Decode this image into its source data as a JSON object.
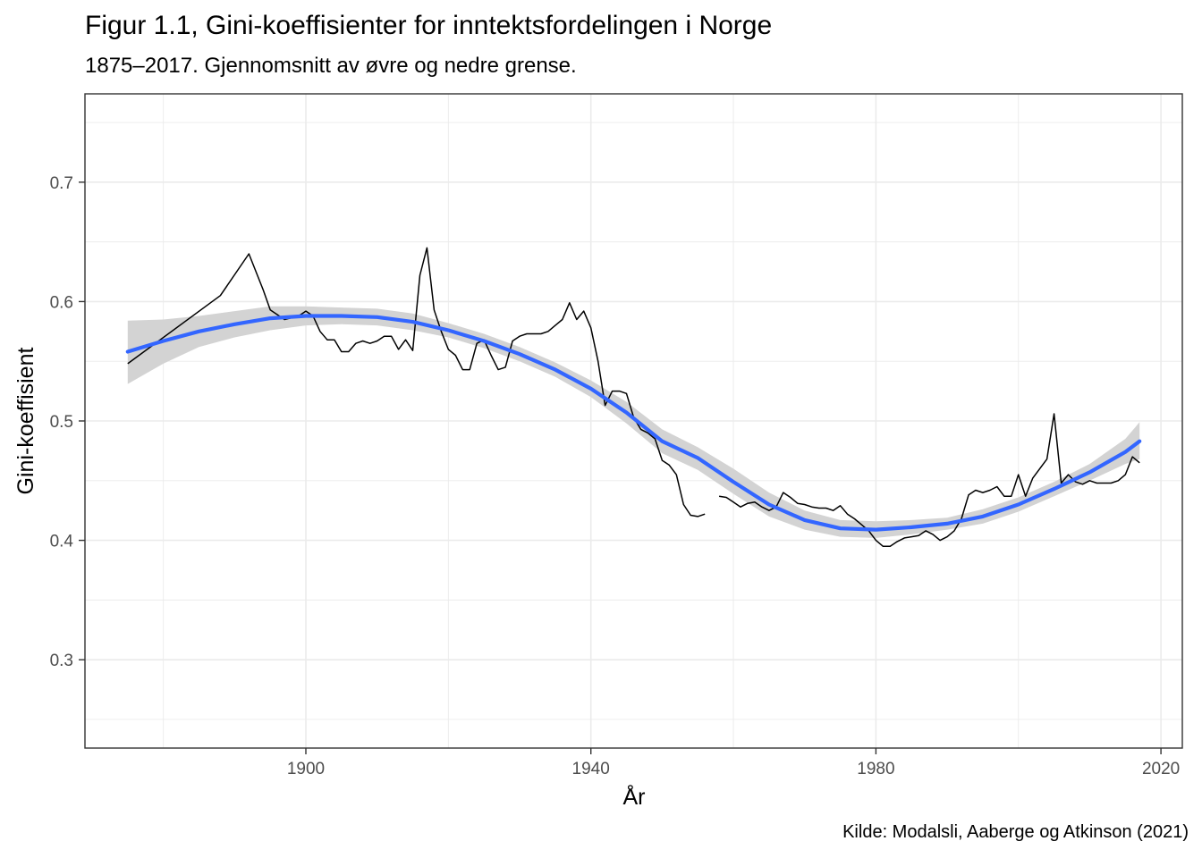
{
  "chart_data": {
    "type": "line",
    "title": "Figur 1.1, Gini-koeffisienter for inntektsfordelingen i Norge",
    "subtitle": "1875–2017. Gjennomsnitt av øvre og nedre grense.",
    "xlabel": "År",
    "ylabel": "Gini-koeffisient",
    "caption": "Kilde: Modalsli, Aaberge og Atkinson (2021)",
    "xlim": [
      1869,
      2023
    ],
    "ylim": [
      0.226,
      0.774
    ],
    "x_ticks": [
      1900,
      1940,
      1980,
      2020
    ],
    "x_tick_labels": [
      "1900",
      "1940",
      "1980",
      "2020"
    ],
    "y_ticks": [
      0.3,
      0.4,
      0.5,
      0.6,
      0.7
    ],
    "y_tick_labels": [
      "0.3",
      "0.4",
      "0.5",
      "0.6",
      "0.7"
    ],
    "grid": true,
    "legend": "none",
    "colors": {
      "observed": "#000000",
      "smooth": "#3366FF",
      "band": "#D3D3D3",
      "grid": "#EBEBEB"
    },
    "series": [
      {
        "kind": "observed",
        "segments": [
          [
            [
              1875,
              0.548
            ],
            [
              1888,
              0.605
            ],
            [
              1892,
              0.64
            ],
            [
              1894,
              0.61
            ],
            [
              1895,
              0.593
            ],
            [
              1897,
              0.585
            ],
            [
              1899,
              0.588
            ],
            [
              1900,
              0.592
            ],
            [
              1901,
              0.588
            ],
            [
              1902,
              0.575
            ],
            [
              1903,
              0.568
            ],
            [
              1904,
              0.568
            ],
            [
              1905,
              0.558
            ],
            [
              1906,
              0.558
            ],
            [
              1907,
              0.565
            ],
            [
              1908,
              0.567
            ],
            [
              1909,
              0.565
            ],
            [
              1910,
              0.567
            ],
            [
              1911,
              0.571
            ],
            [
              1912,
              0.571
            ],
            [
              1913,
              0.56
            ],
            [
              1914,
              0.568
            ],
            [
              1915,
              0.559
            ],
            [
              1916,
              0.622
            ],
            [
              1917,
              0.645
            ],
            [
              1918,
              0.593
            ],
            [
              1919,
              0.575
            ],
            [
              1920,
              0.56
            ],
            [
              1921,
              0.555
            ],
            [
              1922,
              0.543
            ],
            [
              1923,
              0.543
            ],
            [
              1924,
              0.565
            ],
            [
              1925,
              0.568
            ],
            [
              1926,
              0.555
            ],
            [
              1927,
              0.543
            ],
            [
              1928,
              0.545
            ],
            [
              1929,
              0.567
            ],
            [
              1930,
              0.571
            ],
            [
              1931,
              0.573
            ],
            [
              1932,
              0.573
            ],
            [
              1933,
              0.573
            ],
            [
              1934,
              0.575
            ],
            [
              1935,
              0.58
            ],
            [
              1936,
              0.585
            ],
            [
              1937,
              0.599
            ],
            [
              1938,
              0.585
            ],
            [
              1939,
              0.592
            ],
            [
              1940,
              0.578
            ],
            [
              1941,
              0.55
            ],
            [
              1942,
              0.513
            ],
            [
              1943,
              0.525
            ],
            [
              1944,
              0.525
            ],
            [
              1945,
              0.523
            ],
            [
              1946,
              0.503
            ],
            [
              1947,
              0.493
            ],
            [
              1948,
              0.49
            ],
            [
              1949,
              0.485
            ],
            [
              1950,
              0.467
            ],
            [
              1951,
              0.463
            ],
            [
              1952,
              0.455
            ],
            [
              1953,
              0.43
            ],
            [
              1954,
              0.421
            ],
            [
              1955,
              0.42
            ],
            [
              1956,
              0.422
            ]
          ],
          [
            [
              1958,
              0.437
            ],
            [
              1959,
              0.436
            ],
            [
              1960,
              0.432
            ],
            [
              1961,
              0.428
            ],
            [
              1962,
              0.431
            ],
            [
              1963,
              0.432
            ],
            [
              1964,
              0.428
            ],
            [
              1965,
              0.425
            ],
            [
              1966,
              0.428
            ],
            [
              1967,
              0.44
            ],
            [
              1968,
              0.436
            ],
            [
              1969,
              0.431
            ],
            [
              1970,
              0.43
            ],
            [
              1971,
              0.428
            ],
            [
              1972,
              0.427
            ],
            [
              1973,
              0.427
            ],
            [
              1974,
              0.425
            ],
            [
              1975,
              0.429
            ],
            [
              1976,
              0.422
            ],
            [
              1977,
              0.418
            ],
            [
              1978,
              0.413
            ],
            [
              1979,
              0.408
            ],
            [
              1980,
              0.4
            ],
            [
              1981,
              0.395
            ],
            [
              1982,
              0.395
            ],
            [
              1983,
              0.399
            ],
            [
              1984,
              0.402
            ],
            [
              1985,
              0.403
            ],
            [
              1986,
              0.404
            ],
            [
              1987,
              0.408
            ],
            [
              1988,
              0.405
            ],
            [
              1989,
              0.4
            ],
            [
              1990,
              0.403
            ],
            [
              1991,
              0.408
            ],
            [
              1992,
              0.418
            ],
            [
              1993,
              0.438
            ],
            [
              1994,
              0.442
            ],
            [
              1995,
              0.44
            ],
            [
              1996,
              0.442
            ],
            [
              1997,
              0.445
            ],
            [
              1998,
              0.437
            ],
            [
              1999,
              0.437
            ],
            [
              2000,
              0.455
            ],
            [
              2001,
              0.437
            ],
            [
              2002,
              0.452
            ],
            [
              2003,
              0.46
            ],
            [
              2004,
              0.468
            ],
            [
              2005,
              0.506
            ],
            [
              2006,
              0.448
            ],
            [
              2007,
              0.455
            ],
            [
              2008,
              0.449
            ],
            [
              2009,
              0.447
            ],
            [
              2010,
              0.45
            ],
            [
              2011,
              0.448
            ],
            [
              2012,
              0.448
            ],
            [
              2013,
              0.448
            ],
            [
              2014,
              0.45
            ],
            [
              2015,
              0.455
            ],
            [
              2016,
              0.47
            ],
            [
              2017,
              0.465
            ]
          ]
        ]
      },
      {
        "kind": "smooth",
        "points": [
          [
            1875,
            0.558
          ],
          [
            1880,
            0.567
          ],
          [
            1885,
            0.575
          ],
          [
            1890,
            0.581
          ],
          [
            1895,
            0.586
          ],
          [
            1900,
            0.588
          ],
          [
            1905,
            0.588
          ],
          [
            1910,
            0.587
          ],
          [
            1915,
            0.583
          ],
          [
            1920,
            0.576
          ],
          [
            1925,
            0.567
          ],
          [
            1930,
            0.556
          ],
          [
            1935,
            0.543
          ],
          [
            1940,
            0.527
          ],
          [
            1945,
            0.507
          ],
          [
            1950,
            0.483
          ],
          [
            1955,
            0.469
          ],
          [
            1960,
            0.449
          ],
          [
            1965,
            0.43
          ],
          [
            1970,
            0.417
          ],
          [
            1975,
            0.41
          ],
          [
            1980,
            0.409
          ],
          [
            1985,
            0.411
          ],
          [
            1990,
            0.414
          ],
          [
            1995,
            0.42
          ],
          [
            2000,
            0.43
          ],
          [
            2005,
            0.443
          ],
          [
            2010,
            0.457
          ],
          [
            2015,
            0.474
          ],
          [
            2017,
            0.483
          ]
        ]
      },
      {
        "kind": "band",
        "upper": [
          [
            1875,
            0.584
          ],
          [
            1880,
            0.585
          ],
          [
            1885,
            0.588
          ],
          [
            1890,
            0.592
          ],
          [
            1895,
            0.596
          ],
          [
            1900,
            0.596
          ],
          [
            1905,
            0.595
          ],
          [
            1910,
            0.594
          ],
          [
            1915,
            0.59
          ],
          [
            1920,
            0.582
          ],
          [
            1925,
            0.573
          ],
          [
            1930,
            0.562
          ],
          [
            1935,
            0.549
          ],
          [
            1940,
            0.534
          ],
          [
            1945,
            0.516
          ],
          [
            1950,
            0.493
          ],
          [
            1955,
            0.478
          ],
          [
            1960,
            0.46
          ],
          [
            1965,
            0.44
          ],
          [
            1970,
            0.425
          ],
          [
            1975,
            0.417
          ],
          [
            1980,
            0.416
          ],
          [
            1985,
            0.417
          ],
          [
            1990,
            0.419
          ],
          [
            1995,
            0.426
          ],
          [
            2000,
            0.436
          ],
          [
            2005,
            0.449
          ],
          [
            2010,
            0.464
          ],
          [
            2015,
            0.485
          ],
          [
            2017,
            0.499
          ]
        ],
        "lower": [
          [
            1875,
            0.531
          ],
          [
            1880,
            0.548
          ],
          [
            1885,
            0.562
          ],
          [
            1890,
            0.57
          ],
          [
            1895,
            0.576
          ],
          [
            1900,
            0.58
          ],
          [
            1905,
            0.581
          ],
          [
            1910,
            0.58
          ],
          [
            1915,
            0.576
          ],
          [
            1920,
            0.57
          ],
          [
            1925,
            0.561
          ],
          [
            1930,
            0.55
          ],
          [
            1935,
            0.537
          ],
          [
            1940,
            0.52
          ],
          [
            1945,
            0.498
          ],
          [
            1950,
            0.473
          ],
          [
            1955,
            0.459
          ],
          [
            1960,
            0.439
          ],
          [
            1965,
            0.42
          ],
          [
            1970,
            0.409
          ],
          [
            1975,
            0.403
          ],
          [
            1980,
            0.402
          ],
          [
            1985,
            0.405
          ],
          [
            1990,
            0.409
          ],
          [
            1995,
            0.414
          ],
          [
            2000,
            0.424
          ],
          [
            2005,
            0.437
          ],
          [
            2010,
            0.45
          ],
          [
            2015,
            0.464
          ],
          [
            2017,
            0.468
          ]
        ]
      }
    ]
  }
}
